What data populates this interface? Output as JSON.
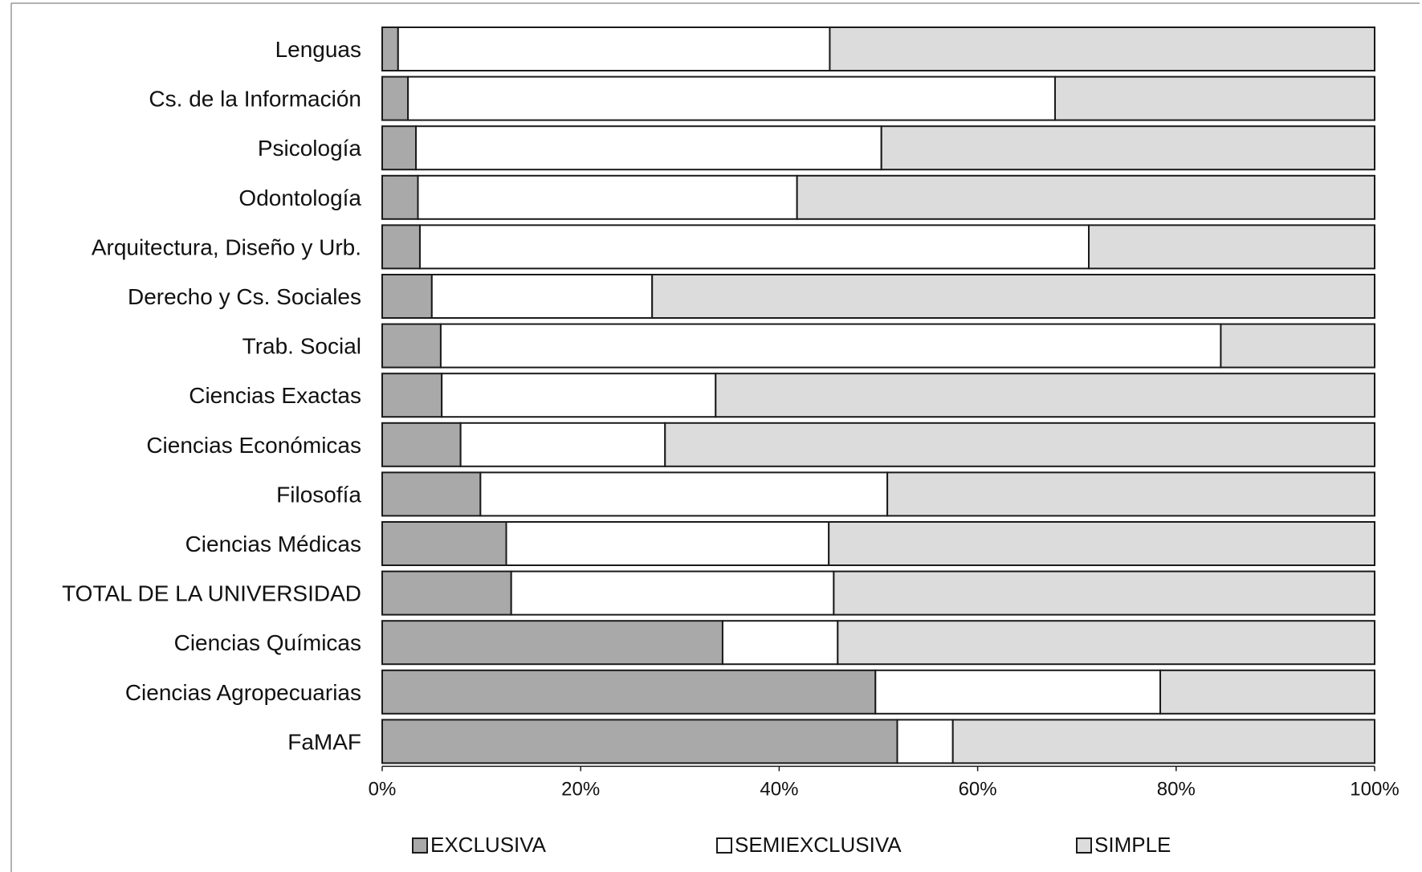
{
  "chart_data": {
    "type": "bar",
    "orientation": "horizontal",
    "stacked": "percent",
    "title": "",
    "xlabel": "",
    "ylabel": "",
    "xlim": [
      0,
      100
    ],
    "x_ticks": [
      "0%",
      "20%",
      "40%",
      "60%",
      "80%",
      "100%"
    ],
    "grid": false,
    "legend_position": "bottom",
    "categories": [
      "Lenguas",
      "Cs. de la Información",
      "Psicología",
      "Odontología",
      "Arquitectura, Diseño y Urb.",
      "Derecho y Cs. Sociales",
      "Trab. Social",
      "Ciencias Exactas",
      "Ciencias Económicas",
      "Filosofía",
      "Ciencias Médicas",
      "TOTAL DE LA UNIVERSIDAD",
      "Ciencias Químicas",
      "Ciencias Agropecuarias",
      "FaMAF"
    ],
    "series": [
      {
        "name": "EXCLUSIVA",
        "color": "#a9a9a9",
        "values": [
          1.6,
          2.6,
          3.4,
          3.6,
          3.8,
          5.0,
          5.9,
          6.0,
          7.9,
          9.9,
          12.5,
          13.0,
          34.3,
          49.7,
          51.9
        ]
      },
      {
        "name": "SEMIEXCLUSIVA",
        "color": "#ffffff",
        "values": [
          43.5,
          65.2,
          46.9,
          38.2,
          67.4,
          22.2,
          78.6,
          27.6,
          20.6,
          41.0,
          32.5,
          32.5,
          11.6,
          28.7,
          5.6
        ]
      },
      {
        "name": "SIMPLE",
        "color": "#dcdcdc",
        "values": [
          54.9,
          32.2,
          49.7,
          58.2,
          28.8,
          72.8,
          15.5,
          66.4,
          71.5,
          49.1,
          55.0,
          54.5,
          54.1,
          21.6,
          42.5
        ]
      }
    ]
  }
}
